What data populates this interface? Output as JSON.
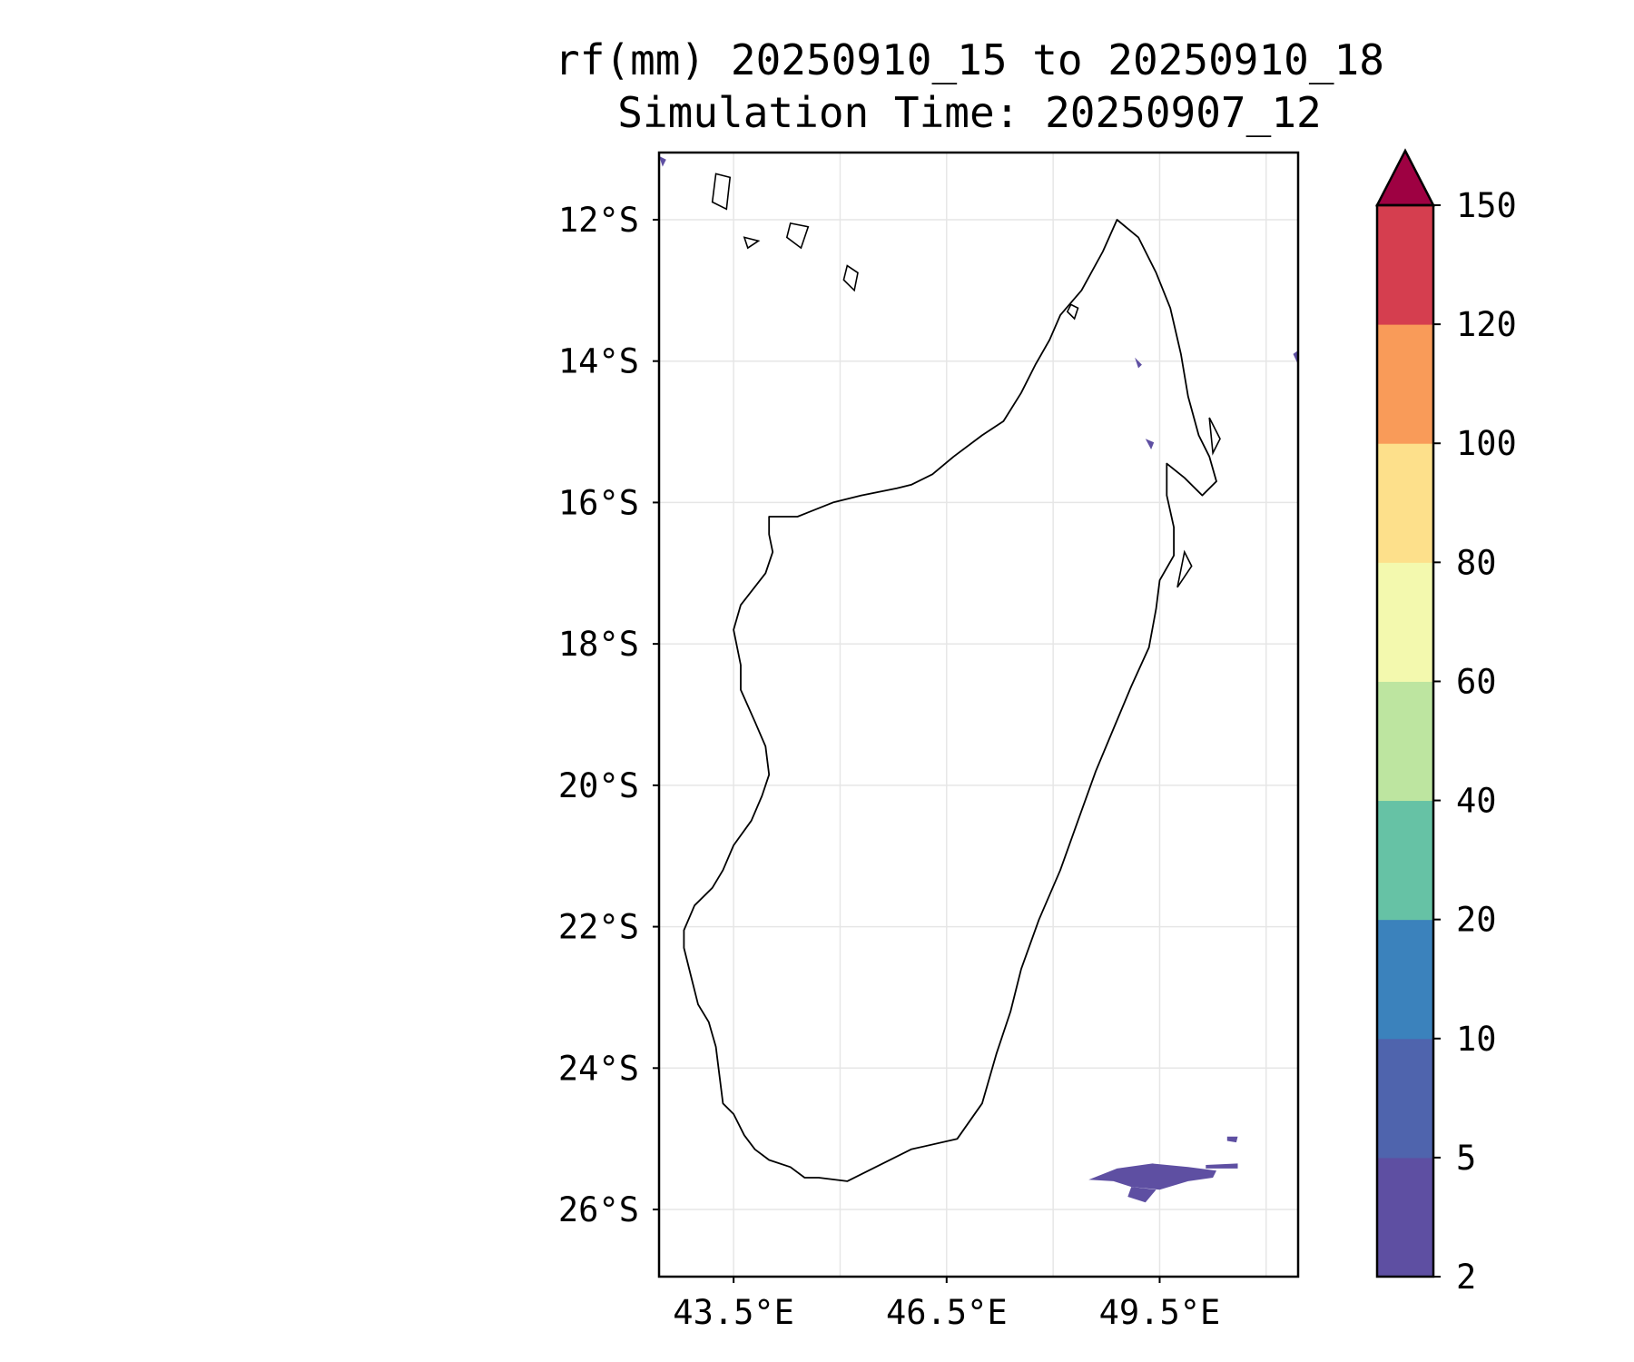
{
  "map": {
    "title_line1": "rf(mm) 20250910_15 to 20250910_18",
    "title_line2": "Simulation Time: 20250907_12",
    "extent": {
      "lon_min": 42.45,
      "lon_max": 51.45,
      "lat_min": -26.95,
      "lat_max": -11.05
    },
    "lat_ticks": [
      {
        "lat": -12,
        "label": "12°S"
      },
      {
        "lat": -14,
        "label": "14°S"
      },
      {
        "lat": -16,
        "label": "16°S"
      },
      {
        "lat": -18,
        "label": "18°S"
      },
      {
        "lat": -20,
        "label": "20°S"
      },
      {
        "lat": -22,
        "label": "22°S"
      },
      {
        "lat": -24,
        "label": "24°S"
      },
      {
        "lat": -26,
        "label": "26°S"
      }
    ],
    "lon_ticks": [
      {
        "lon": 43.5,
        "label": "43.5°E"
      },
      {
        "lon": 46.5,
        "label": "46.5°E"
      },
      {
        "lon": 49.5,
        "label": "49.5°E"
      }
    ],
    "lon_grid": [
      43.5,
      45.0,
      46.5,
      48.0,
      49.5,
      51.0
    ],
    "gridlines": true,
    "land_outline_color": "#000000",
    "rain_color": "#5e4fa2",
    "coastline": [
      [
        44.5,
        -25.55
      ],
      [
        44.3,
        -25.4
      ],
      [
        44.0,
        -25.3
      ],
      [
        43.8,
        -25.15
      ],
      [
        43.65,
        -24.95
      ],
      [
        43.5,
        -24.65
      ],
      [
        43.35,
        -24.5
      ],
      [
        43.3,
        -24.1
      ],
      [
        43.25,
        -23.7
      ],
      [
        43.15,
        -23.35
      ],
      [
        43.0,
        -23.1
      ],
      [
        42.9,
        -22.7
      ],
      [
        42.8,
        -22.3
      ],
      [
        42.8,
        -22.05
      ],
      [
        42.95,
        -21.7
      ],
      [
        43.2,
        -21.45
      ],
      [
        43.35,
        -21.2
      ],
      [
        43.5,
        -20.85
      ],
      [
        43.75,
        -20.5
      ],
      [
        43.9,
        -20.15
      ],
      [
        44.0,
        -19.85
      ],
      [
        43.95,
        -19.45
      ],
      [
        43.8,
        -19.1
      ],
      [
        43.6,
        -18.65
      ],
      [
        43.6,
        -18.3
      ],
      [
        43.5,
        -17.8
      ],
      [
        43.6,
        -17.45
      ],
      [
        43.95,
        -17.0
      ],
      [
        44.05,
        -16.7
      ],
      [
        44.0,
        -16.45
      ],
      [
        44.0,
        -16.2
      ],
      [
        44.4,
        -16.2
      ],
      [
        44.9,
        -16.0
      ],
      [
        45.3,
        -15.9
      ],
      [
        45.8,
        -15.8
      ],
      [
        46.0,
        -15.75
      ],
      [
        46.3,
        -15.6
      ],
      [
        46.6,
        -15.35
      ],
      [
        47.0,
        -15.05
      ],
      [
        47.3,
        -14.85
      ],
      [
        47.55,
        -14.45
      ],
      [
        47.75,
        -14.05
      ],
      [
        47.95,
        -13.7
      ],
      [
        48.1,
        -13.35
      ],
      [
        48.4,
        -13.0
      ],
      [
        48.7,
        -12.45
      ],
      [
        48.9,
        -12.0
      ],
      [
        49.2,
        -12.25
      ],
      [
        49.45,
        -12.75
      ],
      [
        49.65,
        -13.25
      ],
      [
        49.8,
        -13.9
      ],
      [
        49.9,
        -14.5
      ],
      [
        50.05,
        -15.05
      ],
      [
        50.2,
        -15.35
      ],
      [
        50.3,
        -15.7
      ],
      [
        50.1,
        -15.9
      ],
      [
        49.85,
        -15.65
      ],
      [
        49.6,
        -15.45
      ],
      [
        49.6,
        -15.9
      ],
      [
        49.7,
        -16.35
      ],
      [
        49.7,
        -16.75
      ],
      [
        49.5,
        -17.1
      ],
      [
        49.45,
        -17.5
      ],
      [
        49.35,
        -18.05
      ],
      [
        49.1,
        -18.6
      ],
      [
        48.85,
        -19.2
      ],
      [
        48.6,
        -19.8
      ],
      [
        48.35,
        -20.5
      ],
      [
        48.1,
        -21.2
      ],
      [
        47.8,
        -21.9
      ],
      [
        47.55,
        -22.6
      ],
      [
        47.4,
        -23.2
      ],
      [
        47.2,
        -23.8
      ],
      [
        47.0,
        -24.5
      ],
      [
        46.65,
        -25.0
      ],
      [
        46.0,
        -25.15
      ],
      [
        45.5,
        -25.4
      ],
      [
        45.1,
        -25.6
      ],
      [
        44.7,
        -25.55
      ],
      [
        44.5,
        -25.55
      ]
    ],
    "small_islands": [
      [
        [
          43.25,
          -11.35
        ],
        [
          43.45,
          -11.4
        ],
        [
          43.4,
          -11.85
        ],
        [
          43.2,
          -11.75
        ],
        [
          43.25,
          -11.35
        ]
      ],
      [
        [
          44.3,
          -12.05
        ],
        [
          44.55,
          -12.1
        ],
        [
          44.45,
          -12.4
        ],
        [
          44.25,
          -12.25
        ],
        [
          44.3,
          -12.05
        ]
      ],
      [
        [
          43.65,
          -12.25
        ],
        [
          43.85,
          -12.3
        ],
        [
          43.7,
          -12.4
        ],
        [
          43.65,
          -12.25
        ]
      ],
      [
        [
          45.1,
          -12.65
        ],
        [
          45.25,
          -12.75
        ],
        [
          45.2,
          -13.0
        ],
        [
          45.05,
          -12.85
        ],
        [
          45.1,
          -12.65
        ]
      ],
      [
        [
          48.25,
          -13.2
        ],
        [
          48.35,
          -13.25
        ],
        [
          48.3,
          -13.4
        ],
        [
          48.2,
          -13.3
        ],
        [
          48.25,
          -13.2
        ]
      ],
      [
        [
          50.2,
          -14.8
        ],
        [
          50.35,
          -15.1
        ],
        [
          50.25,
          -15.3
        ],
        [
          50.2,
          -14.8
        ]
      ],
      [
        [
          49.85,
          -16.7
        ],
        [
          49.95,
          -16.9
        ],
        [
          49.75,
          -17.2
        ],
        [
          49.85,
          -16.7
        ]
      ]
    ],
    "rain_patches": [
      [
        [
          48.9,
          -25.42
        ],
        [
          49.4,
          -25.35
        ],
        [
          49.9,
          -25.4
        ],
        [
          50.3,
          -25.45
        ],
        [
          50.25,
          -25.55
        ],
        [
          49.9,
          -25.6
        ],
        [
          49.5,
          -25.72
        ],
        [
          49.1,
          -25.68
        ],
        [
          48.85,
          -25.6
        ],
        [
          48.5,
          -25.58
        ],
        [
          48.9,
          -25.42
        ]
      ],
      [
        [
          49.1,
          -25.68
        ],
        [
          49.45,
          -25.72
        ],
        [
          49.3,
          -25.9
        ],
        [
          49.05,
          -25.82
        ],
        [
          49.1,
          -25.68
        ]
      ],
      [
        [
          50.15,
          -25.37
        ],
        [
          50.6,
          -25.35
        ],
        [
          50.6,
          -25.42
        ],
        [
          50.15,
          -25.42
        ],
        [
          50.15,
          -25.37
        ]
      ],
      [
        [
          50.45,
          -24.97
        ],
        [
          50.6,
          -24.97
        ],
        [
          50.58,
          -25.05
        ],
        [
          50.45,
          -25.03
        ],
        [
          50.45,
          -24.97
        ]
      ],
      [
        [
          49.3,
          -15.1
        ],
        [
          49.42,
          -15.15
        ],
        [
          49.38,
          -15.25
        ],
        [
          49.3,
          -15.1
        ]
      ],
      [
        [
          49.15,
          -13.95
        ],
        [
          49.25,
          -14.05
        ],
        [
          49.2,
          -14.1
        ],
        [
          49.15,
          -13.95
        ]
      ],
      [
        [
          51.38,
          -13.9
        ],
        [
          51.45,
          -13.85
        ],
        [
          51.45,
          -14.05
        ],
        [
          51.38,
          -13.9
        ]
      ],
      [
        [
          42.45,
          -11.1
        ],
        [
          42.55,
          -11.15
        ],
        [
          42.5,
          -11.25
        ],
        [
          42.45,
          -11.1
        ]
      ]
    ]
  },
  "colorbar": {
    "bounds": [
      2,
      5,
      10,
      20,
      40,
      60,
      80,
      100,
      120,
      150
    ],
    "labels": [
      "2",
      "5",
      "10",
      "20",
      "40",
      "60",
      "80",
      "100",
      "120",
      "150"
    ],
    "colors": [
      "#5e4fa2",
      "#4f64ad",
      "#3b82bc",
      "#66c2a5",
      "#bde5a0",
      "#f3f9ae",
      "#fde08b",
      "#f99b59",
      "#d53e4f"
    ],
    "extend_color": "#9e0142",
    "extend": "max"
  }
}
